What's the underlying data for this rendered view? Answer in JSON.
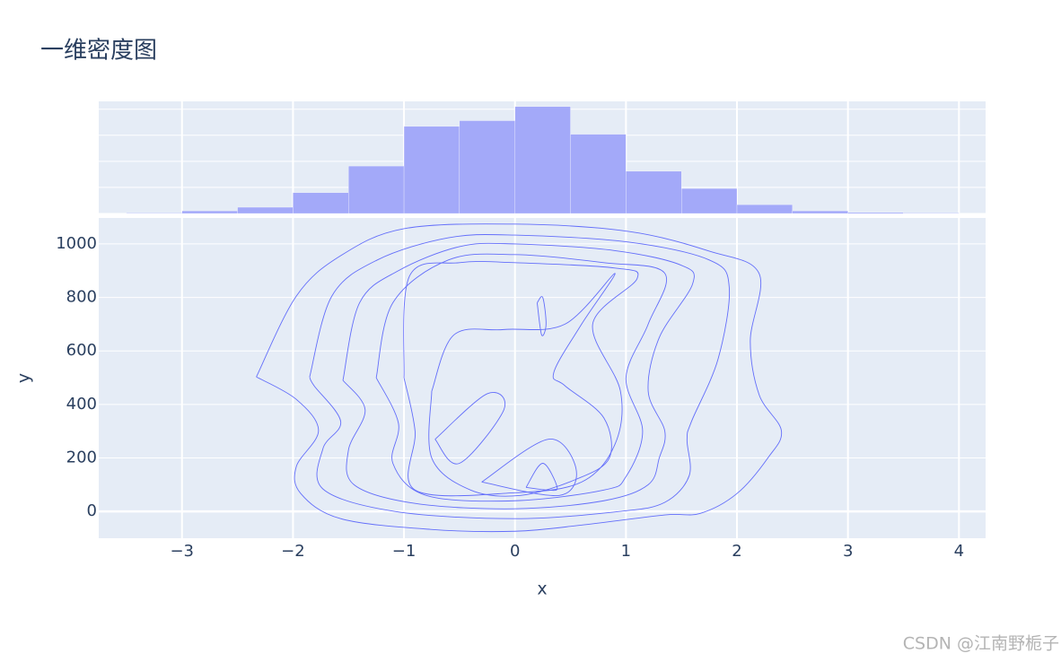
{
  "chart_data": [
    {
      "type": "histogram",
      "title": "一维密度图",
      "color": "#a3a9f9",
      "bins": [
        -3.5,
        -3,
        -2.5,
        -2,
        -1.5,
        -1,
        -0.5,
        0,
        0.5,
        1,
        1.5,
        2,
        2.5,
        3,
        3.5,
        4
      ],
      "values": [
        1,
        5,
        12,
        40,
        91,
        167,
        178,
        205,
        152,
        81,
        48,
        17,
        5,
        2,
        1
      ],
      "xlim": [
        -3.75,
        4.24
      ],
      "ylim": [
        0,
        215
      ],
      "yticks": [
        0,
        50,
        100,
        150,
        200
      ],
      "grid": true
    },
    {
      "type": "contour",
      "color": "#636efa",
      "xlabel": "x",
      "ylabel": "y",
      "xlim": [
        -3.75,
        4.24
      ],
      "ylim": [
        -100,
        1097
      ],
      "xticks": [
        {
          "value": -3,
          "label": "−3"
        },
        {
          "value": -2,
          "label": "−2"
        },
        {
          "value": -1,
          "label": "−1"
        },
        0,
        1,
        2,
        3,
        4
      ],
      "yticks": [
        0,
        200,
        400,
        600,
        800,
        1000
      ],
      "grid": true,
      "series": [
        {
          "x": [
            -2.33,
            -1.97,
            -1.57,
            -1.0,
            0,
            1.02,
            1.75,
            2.2,
            2.12,
            2.2,
            2.4,
            2.28,
            2.0,
            1.67,
            1.35,
            0.62,
            0,
            -0.76,
            -1.57,
            -1.93,
            -1.97,
            -1.77,
            -1.97,
            -2.33
          ],
          "y": [
            503,
            805,
            956,
            1057,
            1074,
            1047,
            973,
            889,
            638,
            436,
            302,
            201,
            67,
            -7,
            -13,
            -50,
            -74,
            -67,
            -27,
            67,
            168,
            302,
            419,
            503
          ]
        },
        {
          "x": [
            -1.85,
            -1.65,
            -1.24,
            -0.6,
            0,
            1.02,
            1.75,
            1.93,
            1.83,
            1.59,
            1.55,
            1.57,
            1.35,
            0.94,
            0,
            -1.08,
            -1.73,
            -1.73,
            -1.57,
            -1.81,
            -1.85
          ],
          "y": [
            503,
            805,
            940,
            1023,
            1033,
            1007,
            940,
            839,
            570,
            336,
            268,
            134,
            34,
            0,
            -27,
            0,
            84,
            235,
            336,
            470,
            503
          ]
        },
        {
          "x": [
            -1.55,
            -1.4,
            -1.05,
            -0.5,
            0,
            0.9,
            1.5,
            1.6,
            1.3,
            1.2,
            1.35,
            1.3,
            1.2,
            0.8,
            0,
            -0.9,
            -1.45,
            -1.5,
            -1.35,
            -1.55
          ],
          "y": [
            490,
            780,
            900,
            990,
            1000,
            975,
            920,
            850,
            650,
            450,
            300,
            200,
            100,
            40,
            10,
            30,
            100,
            230,
            380,
            490
          ]
        },
        {
          "x": [
            -1.25,
            -1.1,
            -0.6,
            0,
            0.8,
            1.35,
            1.2,
            1.0,
            1.15,
            1.0,
            0.8,
            0,
            -0.8,
            -1.1,
            -1.05,
            -1.25
          ],
          "y": [
            500,
            780,
            940,
            960,
            930,
            890,
            700,
            500,
            300,
            130,
            80,
            40,
            60,
            180,
            330,
            500
          ]
        },
        {
          "x": [
            -1.0,
            -0.95,
            -0.5,
            0,
            0.9,
            1.1,
            0.7,
            0.95,
            0.9,
            0.6,
            0,
            -0.9,
            -0.9,
            -1.0
          ],
          "y": [
            500,
            880,
            930,
            930,
            910,
            870,
            700,
            450,
            250,
            110,
            70,
            80,
            300,
            500
          ]
        },
        {
          "x": [
            -0.75,
            -0.55,
            -0.1,
            0.45,
            0.9,
            0.6,
            0.35,
            0.45,
            0.8,
            0.85,
            0.55,
            0.05,
            -0.4,
            -0.75,
            -0.75
          ],
          "y": [
            450,
            660,
            680,
            700,
            890,
            700,
            520,
            470,
            350,
            200,
            120,
            60,
            80,
            200,
            450
          ]
        },
        {
          "x": [
            -0.72,
            -0.25,
            -0.1,
            -0.5,
            -0.72
          ],
          "y": [
            270,
            440,
            380,
            180,
            270
          ]
        },
        {
          "x": [
            -0.3,
            0.3,
            0.55,
            0.4,
            -0.3
          ],
          "y": [
            110,
            270,
            160,
            60,
            110
          ]
        },
        {
          "x": [
            0.2,
            0.25,
            0.28,
            0.24,
            0.2
          ],
          "y": [
            780,
            800,
            700,
            660,
            780
          ]
        },
        {
          "x": [
            0.1,
            0.25,
            0.38,
            0.3,
            0.1
          ],
          "y": [
            90,
            180,
            90,
            80,
            90
          ]
        }
      ]
    }
  ],
  "watermark": "CSDN @江南野栀子"
}
